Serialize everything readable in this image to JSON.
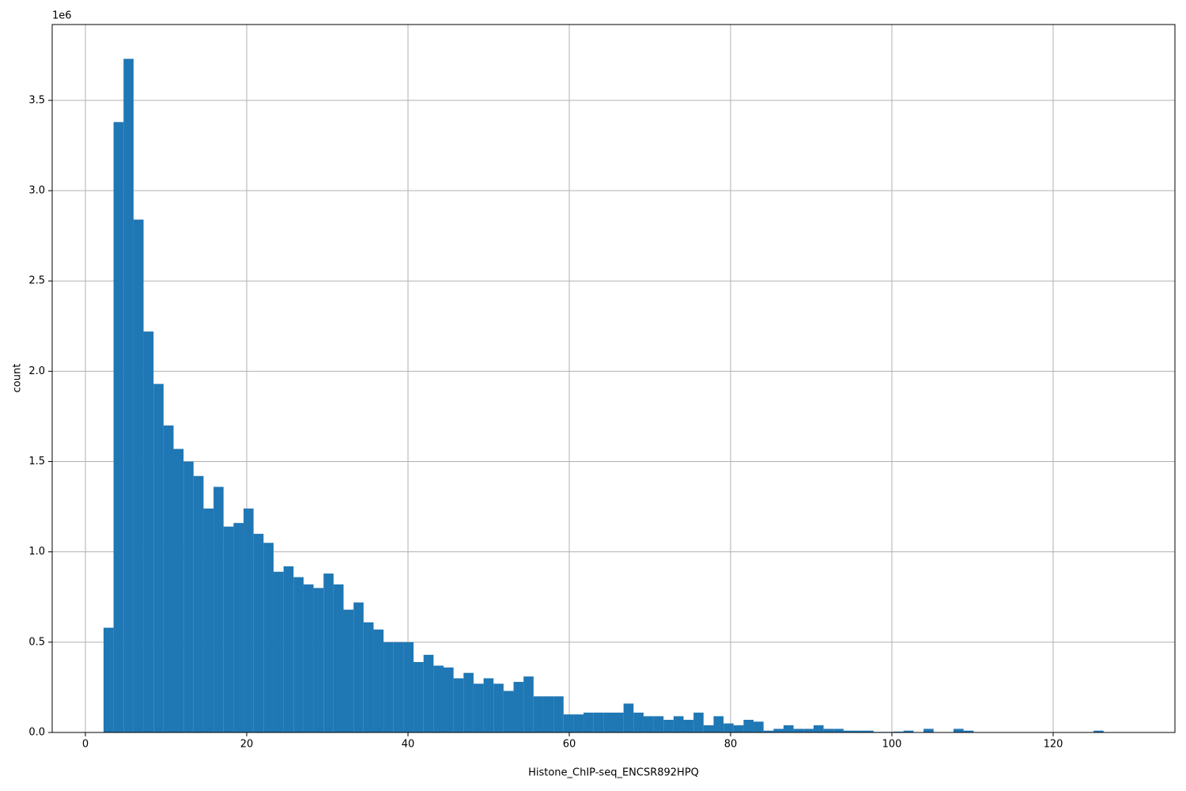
{
  "chart_data": {
    "type": "histogram",
    "x_label": "Histone_ChIP-seq_ENCSR892HPQ",
    "y_label": "count",
    "y_offset_label": "1e6",
    "color": "#1f77b4",
    "grid": true,
    "xlim": [
      -4.12,
      135.1
    ],
    "ylim": [
      0,
      3920000
    ],
    "xticks": [
      0,
      20,
      40,
      60,
      80,
      100,
      120
    ],
    "yticks": [
      {
        "value": 0,
        "label": "0.0"
      },
      {
        "value": 500000,
        "label": "0.5"
      },
      {
        "value": 1000000,
        "label": "1.0"
      },
      {
        "value": 1500000,
        "label": "1.5"
      },
      {
        "value": 2000000,
        "label": "2.0"
      },
      {
        "value": 2500000,
        "label": "2.5"
      },
      {
        "value": 3000000,
        "label": "3.0"
      },
      {
        "value": 3500000,
        "label": "3.5"
      }
    ],
    "bins": [
      2.25,
      3.49,
      4.73,
      5.97,
      7.21,
      8.45,
      9.69,
      10.93,
      12.17,
      13.41,
      14.65,
      15.89,
      17.13,
      18.37,
      19.61,
      20.85,
      22.09,
      23.33,
      24.57,
      25.81,
      27.05,
      28.29,
      29.53,
      30.77,
      32.01,
      33.25,
      34.49,
      35.73,
      36.97,
      38.21,
      39.45,
      40.69,
      41.93,
      43.17,
      44.41,
      45.65,
      46.89,
      48.13,
      49.37,
      50.61,
      51.85,
      53.09,
      54.33,
      55.57,
      56.81,
      58.05,
      59.29,
      60.53,
      61.77,
      63.01,
      64.25,
      65.49,
      66.73,
      67.97,
      69.21,
      70.45,
      71.69,
      72.93,
      74.17,
      75.41,
      76.65,
      77.89,
      79.13,
      80.37,
      81.61,
      82.85,
      84.09,
      85.33,
      86.57,
      87.81,
      89.05,
      90.29,
      91.53,
      92.77,
      94.01,
      95.25,
      96.49,
      97.73,
      98.97,
      100.21,
      101.45,
      102.69,
      103.93,
      105.17,
      106.41,
      107.65,
      108.89,
      110.13,
      111.37,
      112.61,
      113.85,
      115.09,
      116.33,
      117.57,
      118.81,
      120.05,
      121.29,
      122.53,
      123.77,
      125.01,
      126.25
    ],
    "values": [
      580000,
      3380000,
      3730000,
      2840000,
      2220000,
      1930000,
      1700000,
      1570000,
      1500000,
      1420000,
      1240000,
      1360000,
      1140000,
      1160000,
      1240000,
      1100000,
      1050000,
      890000,
      920000,
      860000,
      820000,
      800000,
      880000,
      820000,
      680000,
      720000,
      610000,
      570000,
      500000,
      500000,
      500000,
      390000,
      430000,
      370000,
      360000,
      300000,
      330000,
      270000,
      300000,
      270000,
      230000,
      280000,
      310000,
      200000,
      200000,
      200000,
      100000,
      100000,
      110000,
      110000,
      110000,
      110000,
      160000,
      110000,
      90000,
      90000,
      70000,
      90000,
      70000,
      110000,
      40000,
      90000,
      50000,
      40000,
      70000,
      60000,
      10000,
      20000,
      40000,
      20000,
      20000,
      40000,
      20000,
      20000,
      10000,
      10000,
      10000,
      3000,
      3000,
      5000,
      10000,
      1000,
      20000,
      1000,
      1000,
      20000,
      10000,
      1000,
      1000,
      1000,
      1000,
      1000,
      1000,
      1000,
      1000,
      1000,
      1000,
      1000,
      1000,
      10000
    ]
  }
}
